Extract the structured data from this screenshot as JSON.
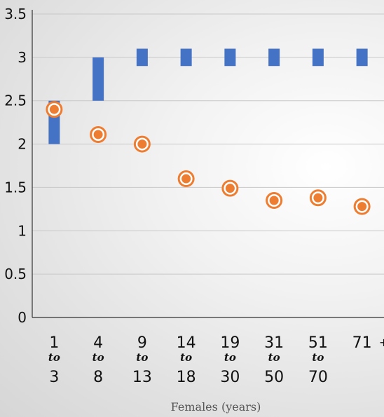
{
  "chart_data": {
    "type": "scatter",
    "xlabel": "Females (years)",
    "ylabel": "",
    "ylim": [
      0,
      3.5
    ],
    "yticks": [
      "0",
      "0.5",
      "1",
      "1.5",
      "2",
      "2.5",
      "3",
      "3.5"
    ],
    "grid": true,
    "categories": [
      {
        "top": "1",
        "mid": "to",
        "bottom": "3"
      },
      {
        "top": "4",
        "mid": "to",
        "bottom": "8"
      },
      {
        "top": "9",
        "mid": "to",
        "bottom": "13"
      },
      {
        "top": "14",
        "mid": "to",
        "bottom": "18"
      },
      {
        "top": "19",
        "mid": "to",
        "bottom": "30"
      },
      {
        "top": "31",
        "mid": "to",
        "bottom": "50"
      },
      {
        "top": "51",
        "mid": "to",
        "bottom": "70"
      },
      {
        "top": "71",
        "plus": "+"
      }
    ],
    "series": [
      {
        "marker": "range-bar",
        "color": "#4472c4",
        "low": [
          2.0,
          2.5,
          2.9,
          2.9,
          2.9,
          2.9,
          2.9,
          2.9
        ],
        "high": [
          2.5,
          3.0,
          3.1,
          3.1,
          3.1,
          3.1,
          3.1,
          3.1
        ]
      },
      {
        "marker": "circle",
        "color": "#ed7d31",
        "values": [
          2.4,
          2.11,
          2.0,
          1.6,
          1.49,
          1.35,
          1.38,
          1.28
        ]
      }
    ]
  }
}
